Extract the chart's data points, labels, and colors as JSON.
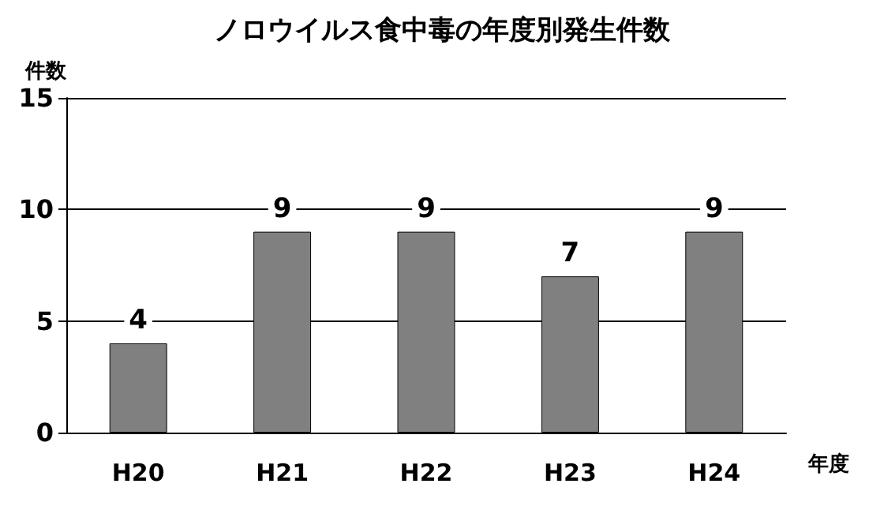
{
  "chart_data": {
    "type": "bar",
    "title": "ノロウイルス食中毒の年度別発生件数",
    "xlabel": "年度",
    "ylabel": "件数",
    "categories": [
      "H20",
      "H21",
      "H22",
      "H23",
      "H24"
    ],
    "values": [
      4,
      9,
      9,
      7,
      9
    ],
    "color": "#808080",
    "ylim": [
      0,
      15
    ],
    "yticks": [
      0,
      5,
      10,
      15
    ],
    "grid": "y",
    "data_labels": true
  }
}
